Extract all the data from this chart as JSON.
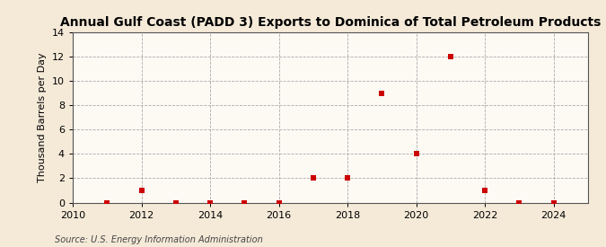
{
  "title": "Annual Gulf Coast (PADD 3) Exports to Dominica of Total Petroleum Products",
  "ylabel": "Thousand Barrels per Day",
  "source": "Source: U.S. Energy Information Administration",
  "background_color": "#f5ead8",
  "plot_background_color": "#fdfaf4",
  "x_data": [
    2011,
    2012,
    2013,
    2014,
    2015,
    2016,
    2017,
    2018,
    2019,
    2020,
    2021,
    2022,
    2023,
    2024
  ],
  "y_data": [
    0.0,
    1.0,
    0.0,
    0.0,
    0.0,
    0.0,
    2.0,
    2.0,
    9.0,
    4.0,
    12.0,
    1.0,
    0.0,
    0.0
  ],
  "xlim": [
    2010,
    2025
  ],
  "ylim": [
    0,
    14
  ],
  "yticks": [
    0,
    2,
    4,
    6,
    8,
    10,
    12,
    14
  ],
  "xticks": [
    2010,
    2012,
    2014,
    2016,
    2018,
    2020,
    2022,
    2024
  ],
  "marker_color": "#cc0000",
  "marker_style": "s",
  "marker_size": 4,
  "grid_color": "#aaaaaa",
  "grid_style": "--",
  "title_fontsize": 10,
  "label_fontsize": 8,
  "tick_fontsize": 8,
  "source_fontsize": 7
}
